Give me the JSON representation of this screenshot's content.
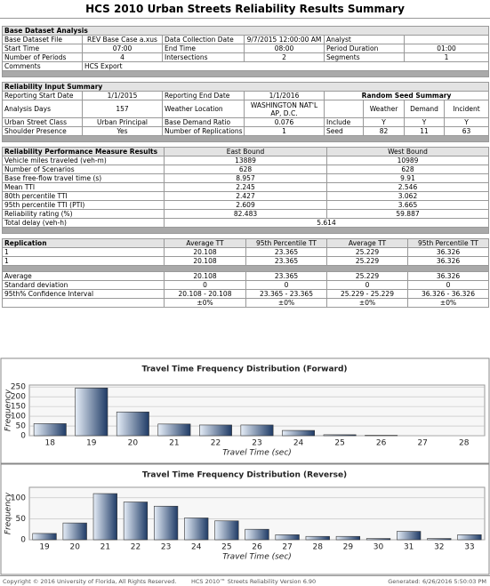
{
  "title": "HCS 2010 Urban Streets Reliability Results Summary",
  "base_dataset": {
    "heading": "Base Dataset Analysis",
    "rows": [
      [
        "Base Dataset File",
        "REV Base Case a.xus",
        "Data Collection Date",
        "9/7/2015 12:00:00 AM",
        "Analyst"
      ],
      [
        "Start Time",
        "07:00",
        "End Time",
        "08:00",
        "Period Duration",
        "01:00"
      ],
      [
        "Number of Periods",
        "4",
        "Intersections",
        "2",
        "Segments",
        "1"
      ],
      [
        "Comments",
        "HCS Export"
      ]
    ]
  },
  "reliability_input": {
    "heading": "Reliability Input Summary",
    "rows": [
      [
        "Reporting Start Date",
        "1/1/2015",
        "Reporting End Date",
        "1/1/2016",
        "Random Seed Summary"
      ],
      [
        "Analysis Days",
        "157",
        "Weather Location",
        "WASHINGTON NAT'L AP, D.C.",
        "Weather",
        "Demand",
        "Incident"
      ],
      [
        "Urban Street Class",
        "Urban Principal",
        "Base Demand Ratio",
        "0.076",
        "Include",
        "Y",
        "Y",
        "Y"
      ],
      [
        "Shoulder Presence",
        "Yes",
        "Number of Replications",
        "1",
        "Seed",
        "82",
        "11",
        "63"
      ]
    ]
  },
  "performance": {
    "header": [
      "Reliability Performance Measure Results",
      "East Bound",
      "West Bound"
    ],
    "rows": [
      [
        "Vehicle miles traveled (veh-m)",
        "13889",
        "10989"
      ],
      [
        "Number of Scenarios",
        "628",
        "628"
      ],
      [
        "Base free-flow travel time (s)",
        "8.957",
        "9.91"
      ],
      [
        "Mean TTI",
        "2.245",
        "2.546"
      ],
      [
        "80th percentile TTI",
        "2.427",
        "3.062"
      ],
      [
        "95th percentile TTI (PTI)",
        "2.609",
        "3.665"
      ],
      [
        "Reliability rating (%)",
        "82.483",
        "59.887"
      ]
    ],
    "total_delay": [
      "Total delay (veh-h)",
      "5.614"
    ]
  },
  "replication": {
    "header": [
      "Replication",
      "Average TT",
      "95th Percentile TT",
      "Average TT",
      "95th Percentile TT"
    ],
    "rows": [
      [
        "1",
        "20.108",
        "23.365",
        "25.229",
        "36.326"
      ],
      [
        "1",
        "20.108",
        "23.365",
        "25.229",
        "36.326"
      ]
    ],
    "summary": [
      [
        "Average",
        "20.108",
        "23.365",
        "25.229",
        "36.326"
      ],
      [
        "Standard deviation",
        "0",
        "0",
        "0",
        "0"
      ],
      [
        "95th% Confidence Interval",
        "20.108 - 20.108",
        "23.365 - 23.365",
        "25.229 - 25.229",
        "36.326 - 36.326"
      ],
      [
        "±0%",
        "±0%",
        "±0%",
        "±0%"
      ]
    ]
  },
  "chart_data": [
    {
      "type": "bar",
      "title": "Travel Time Frequency Distribution (Forward)",
      "x_label": "Travel Time (sec)",
      "y_label": "Frequency",
      "categories": [
        18,
        19,
        20,
        21,
        22,
        23,
        24,
        25,
        26,
        27,
        28
      ],
      "values": [
        62,
        245,
        122,
        60,
        55,
        55,
        27,
        5,
        2,
        0,
        0
      ],
      "color": "#1f3b66",
      "ylim": [
        0,
        260
      ],
      "yticks": [
        0,
        50,
        100,
        150,
        200,
        250
      ],
      "grid": true
    },
    {
      "type": "bar",
      "title": "Travel Time Frequency Distribution (Reverse)",
      "x_label": "Travel Time (sec)",
      "y_label": "Frequency",
      "categories": [
        19,
        20,
        21,
        22,
        23,
        24,
        25,
        26,
        27,
        28,
        29,
        30,
        31,
        32,
        33
      ],
      "values": [
        15,
        40,
        110,
        90,
        80,
        52,
        45,
        25,
        12,
        8,
        8,
        3,
        20,
        3,
        12
      ],
      "color": "#1f3b66",
      "ylim": [
        0,
        125
      ],
      "yticks": [
        0,
        50,
        100
      ],
      "grid": true
    }
  ],
  "footer": {
    "copyright": "Copyright © 2016 University of Florida, All Rights Reserved.",
    "version": "HCS 2010™ Streets Reliability Version 6.90",
    "generated": "Generated: 6/26/2016 5:50:03 PM"
  }
}
